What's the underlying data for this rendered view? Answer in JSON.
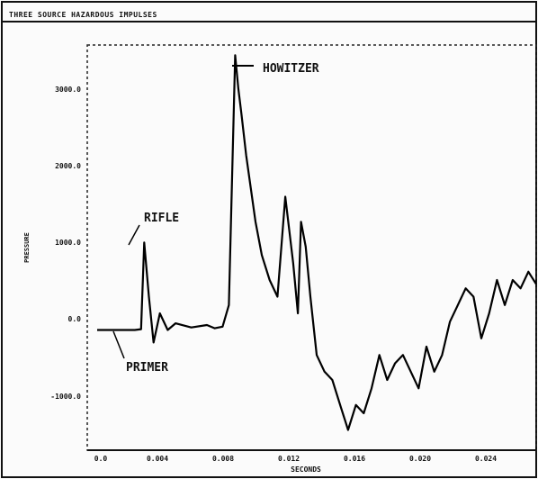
{
  "chart_data": {
    "type": "line",
    "title": "THREE SOURCE HAZARDOUS IMPULSES",
    "xlabel": "SECONDS",
    "ylabel": "PRESSURE",
    "x_tick_labels": [
      "0.0",
      "0.004",
      "0.008",
      "0.012",
      "0.016",
      "0.020",
      "0.024"
    ],
    "y_tick_labels": [
      "-1000.0",
      "0.0",
      "1000.0",
      "2000.0",
      "3000.0"
    ],
    "xlim": [
      0.0,
      0.028
    ],
    "ylim": [
      -1400,
      3400
    ],
    "series": [
      {
        "name": "",
        "x": [
          0.0,
          0.002,
          0.0024,
          0.0028,
          0.003,
          0.0033,
          0.0036,
          0.004,
          0.0045,
          0.005,
          0.006,
          0.007,
          0.0075,
          0.008,
          0.0084,
          0.0088,
          0.009,
          0.0092,
          0.0095,
          0.0098,
          0.0101,
          0.0105,
          0.011,
          0.0115,
          0.012,
          0.0125,
          0.0128,
          0.013,
          0.0133,
          0.0136,
          0.014,
          0.0145,
          0.015,
          0.0155,
          0.016,
          0.0165,
          0.017,
          0.0175,
          0.018,
          0.0185,
          0.019,
          0.0195,
          0.02,
          0.0205,
          0.021,
          0.0215,
          0.022,
          0.0225,
          0.023,
          0.0235,
          0.024,
          0.0245,
          0.025,
          0.0255,
          0.026,
          0.0265,
          0.027,
          0.0275,
          0.028
        ],
        "y": [
          0,
          0,
          0,
          10,
          1050,
          400,
          -150,
          200,
          0,
          80,
          30,
          60,
          20,
          40,
          300,
          3300,
          2900,
          2600,
          2100,
          1700,
          1300,
          900,
          600,
          400,
          1600,
          800,
          200,
          1300,
          1000,
          400,
          -300,
          -500,
          -600,
          -900,
          -1200,
          -900,
          -1000,
          -700,
          -300,
          -600,
          -400,
          -300,
          -500,
          -700,
          -200,
          -500,
          -300,
          100,
          300,
          500,
          400,
          -100,
          200,
          600,
          300,
          600,
          500,
          700,
          550
        ]
      }
    ],
    "annotations": [
      "HOWITZER",
      "RIFLE",
      "PRIMER"
    ],
    "grid": false,
    "legend": "none"
  }
}
